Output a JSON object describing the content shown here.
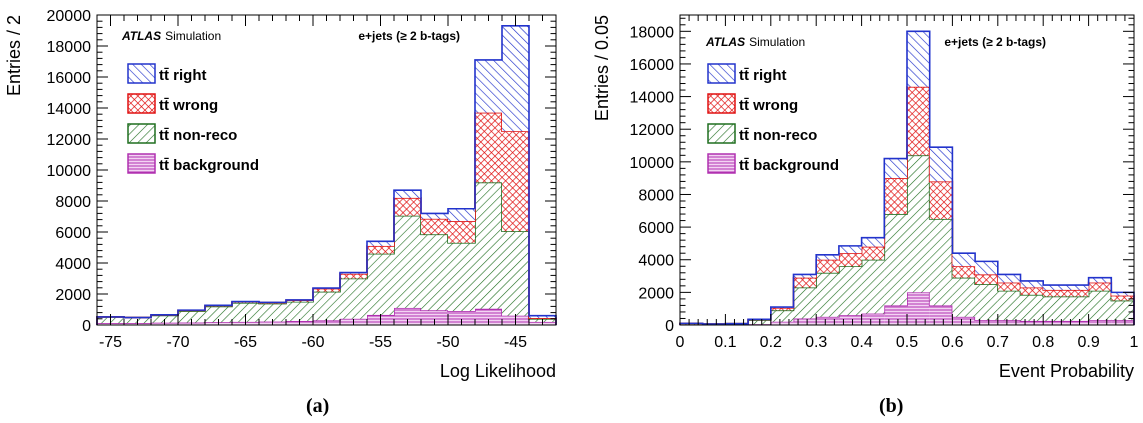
{
  "captions": [
    "(a)",
    "(b)"
  ],
  "chart_data": [
    {
      "type": "bar",
      "stacked": true,
      "histogram": true,
      "xlabel": "Log Likelihood",
      "ylabel": "Entries / 2",
      "xlim": [
        -76,
        -42
      ],
      "ylim": [
        0,
        20000
      ],
      "xticks": [
        -75,
        -70,
        -65,
        -60,
        -55,
        -50,
        -45
      ],
      "yticks": [
        0,
        2000,
        4000,
        6000,
        8000,
        10000,
        12000,
        14000,
        16000,
        18000,
        20000
      ],
      "bin_edges": [
        -76,
        -74,
        -72,
        -70,
        -68,
        -66,
        -64,
        -62,
        -60,
        -58,
        -56,
        -54,
        -52,
        -50,
        -48,
        -46,
        -44,
        -42
      ],
      "series": [
        {
          "name": "background",
          "values": [
            120,
            120,
            150,
            160,
            180,
            200,
            220,
            260,
            300,
            400,
            650,
            1100,
            950,
            900,
            1050,
            600,
            200
          ]
        },
        {
          "name": "non-reco",
          "values": [
            400,
            360,
            470,
            740,
            1020,
            1230,
            1160,
            1240,
            1850,
            2600,
            3950,
            5950,
            4900,
            4400,
            8150,
            5450,
            200
          ]
        },
        {
          "name": "wrong",
          "values": [
            0,
            0,
            30,
            50,
            60,
            70,
            70,
            100,
            200,
            300,
            500,
            1150,
            1000,
            1400,
            4500,
            6450,
            50
          ]
        },
        {
          "name": "right",
          "values": [
            0,
            0,
            10,
            10,
            10,
            10,
            10,
            20,
            30,
            80,
            300,
            500,
            350,
            800,
            3400,
            6800,
            150
          ]
        }
      ],
      "legend": {
        "placement": "top-left",
        "entries": [
          {
            "label": "tt̄ right",
            "color": "#2233cc",
            "pattern": "hatch-up"
          },
          {
            "label": "tt̄ wrong",
            "color": "#e01010",
            "pattern": "crosshatch"
          },
          {
            "label": "tt̄ non-reco",
            "color": "#1f6e1f",
            "pattern": "hatch-down"
          },
          {
            "label": "tt̄ background",
            "color": "#b030b0",
            "pattern": "horizontal"
          }
        ]
      },
      "annotation_atlas": "ATLAS",
      "annotation_sim": "Simulation",
      "annotation_channel": "e+jets (≥ 2 b-tags)"
    },
    {
      "type": "bar",
      "stacked": true,
      "histogram": true,
      "xlabel": "Event Probability",
      "ylabel": "Entries / 0.05",
      "xlim": [
        0,
        1
      ],
      "ylim": [
        0,
        19000
      ],
      "xticks": [
        0,
        0.1,
        0.2,
        0.3,
        0.4,
        0.5,
        0.6,
        0.7,
        0.8,
        0.9,
        1
      ],
      "yticks": [
        0,
        2000,
        4000,
        6000,
        8000,
        10000,
        12000,
        14000,
        16000,
        18000
      ],
      "bin_edges": [
        0,
        0.05,
        0.1,
        0.15,
        0.2,
        0.25,
        0.3,
        0.35,
        0.4,
        0.45,
        0.5,
        0.55,
        0.6,
        0.65,
        0.7,
        0.75,
        0.8,
        0.85,
        0.9,
        0.95,
        1
      ],
      "series": [
        {
          "name": "background",
          "values": [
            30,
            20,
            20,
            50,
            200,
            400,
            500,
            600,
            700,
            1200,
            2000,
            1200,
            500,
            300,
            300,
            250,
            250,
            250,
            300,
            300
          ]
        },
        {
          "name": "non-reco",
          "values": [
            70,
            40,
            60,
            250,
            700,
            1900,
            2700,
            3000,
            3300,
            5600,
            8400,
            5300,
            2400,
            2200,
            1800,
            1600,
            1500,
            1500,
            1800,
            1200
          ]
        },
        {
          "name": "wrong",
          "values": [
            0,
            0,
            0,
            40,
            150,
            600,
            800,
            800,
            800,
            2200,
            4200,
            2300,
            700,
            600,
            500,
            450,
            400,
            400,
            500,
            300
          ]
        },
        {
          "name": "right",
          "values": [
            0,
            0,
            0,
            10,
            50,
            200,
            300,
            450,
            550,
            1200,
            3400,
            2100,
            800,
            800,
            500,
            400,
            300,
            300,
            300,
            200
          ]
        }
      ],
      "legend": {
        "placement": "top-left",
        "entries": [
          {
            "label": "tt̄ right",
            "color": "#2233cc",
            "pattern": "hatch-up"
          },
          {
            "label": "tt̄ wrong",
            "color": "#e01010",
            "pattern": "crosshatch"
          },
          {
            "label": "tt̄ non-reco",
            "color": "#1f6e1f",
            "pattern": "hatch-down"
          },
          {
            "label": "tt̄ background",
            "color": "#b030b0",
            "pattern": "horizontal"
          }
        ]
      },
      "annotation_atlas": "ATLAS",
      "annotation_sim": "Simulation",
      "annotation_channel": "e+jets (≥ 2 b-tags)"
    }
  ]
}
